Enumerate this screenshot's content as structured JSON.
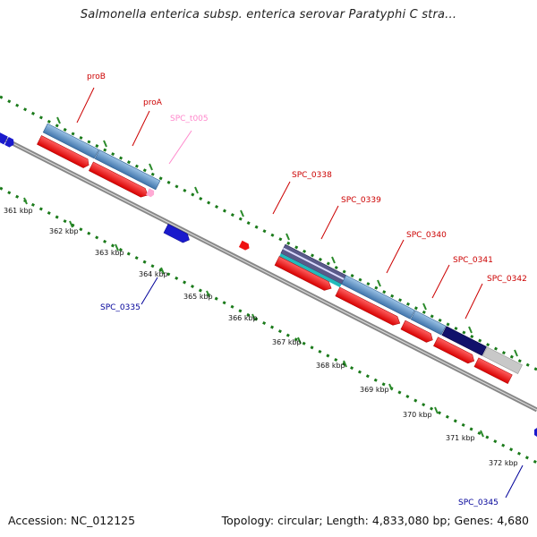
{
  "title": "Salmonella enterica subsp. enterica serovar Paratyphi C stra...",
  "footer": {
    "accession": "Accession: NC_012125",
    "summary": "Topology: circular; Length: 4,833,080 bp; Genes: 4,680"
  },
  "colors": {
    "forward_gene": "#4a7fb5",
    "reverse_gene": "#ee1111",
    "backbone": "#888888",
    "tick": "#1a7a1a",
    "label_red": "#cc0000",
    "label_pink": "#ff88cc",
    "label_blue": "#000099"
  },
  "kbp_labels": [
    "361 kbp",
    "362 kbp",
    "363 kbp",
    "364 kbp",
    "365 kbp",
    "366 kbp",
    "367 kbp",
    "368 kbp",
    "369 kbp",
    "370 kbp",
    "371 kbp",
    "372 kbp"
  ],
  "gene_labels": {
    "proB": "proB",
    "proA": "proA",
    "spc_t005": "SPC_t005",
    "spc_0338": "SPC_0338",
    "spc_0339": "SPC_0339",
    "spc_0340": "SPC_0340",
    "spc_0341": "SPC_0341",
    "spc_0342": "SPC_0342",
    "spc_0335": "SPC_0335",
    "spc_0345": "SPC_0345"
  }
}
